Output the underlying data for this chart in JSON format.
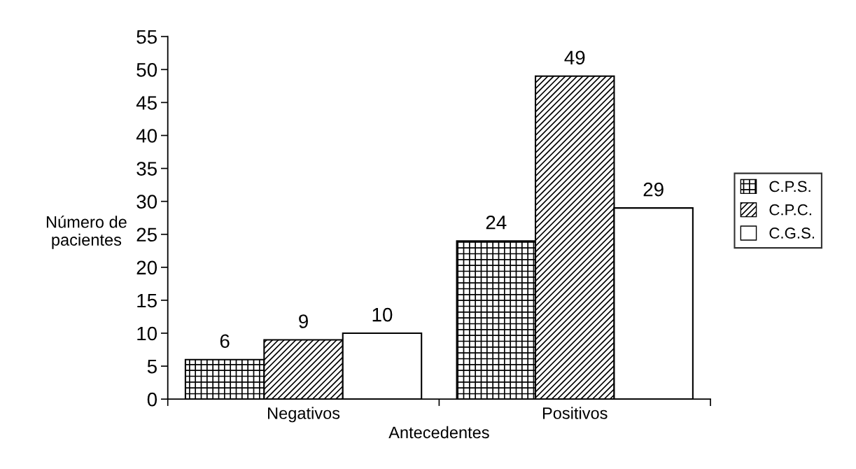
{
  "chart_data": {
    "type": "bar",
    "xlabel": "Antecedentes",
    "ylabel": "Número de\npacientes",
    "categories": [
      "Negativos",
      "Positivos"
    ],
    "series": [
      {
        "name": "C.P.S.",
        "color": "#000000",
        "values": [
          6,
          24
        ]
      },
      {
        "name": "C.P.C.",
        "color": "#000000",
        "values": [
          9,
          49
        ]
      },
      {
        "name": "C.G.S.",
        "color": "#ffffff",
        "values": [
          10,
          29
        ]
      }
    ],
    "ylim": [
      0,
      55
    ],
    "yticks": [
      0,
      5,
      10,
      15,
      20,
      25,
      30,
      35,
      40,
      45,
      50,
      55
    ],
    "data_labels": true,
    "grid": false,
    "legend": "right"
  }
}
